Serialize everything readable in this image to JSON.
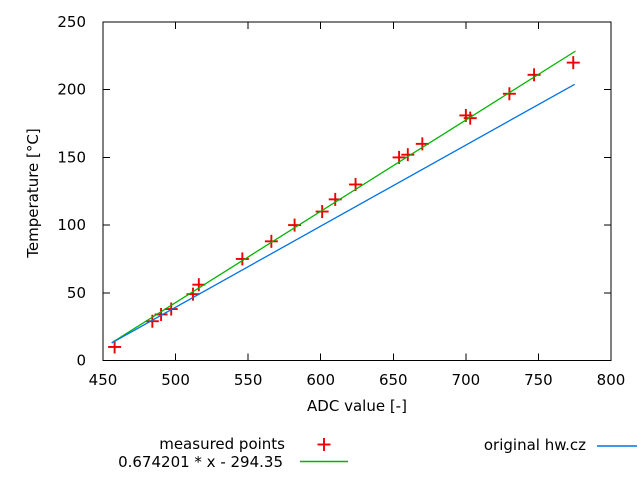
{
  "chart_data": {
    "type": "scatter",
    "title": "",
    "xlabel": "ADC value [-]",
    "ylabel": "Temperature [°C]",
    "xlim": [
      450,
      800
    ],
    "ylim": [
      0,
      250
    ],
    "x_ticks": [
      450,
      500,
      550,
      600,
      650,
      700,
      750,
      800
    ],
    "y_ticks": [
      0,
      50,
      100,
      150,
      200,
      250
    ],
    "grid": false,
    "legend_position": "below-plot",
    "colors": {
      "measured": "#ee0000",
      "fit": "#00b400",
      "original": "#0073e6",
      "frame": "#000000",
      "text": "#000000",
      "background": "#ffffff"
    },
    "series": [
      {
        "name": "measured points",
        "type": "points",
        "marker": "plus",
        "color_key": "measured",
        "points": [
          [
            458,
            10
          ],
          [
            484,
            29
          ],
          [
            490,
            34
          ],
          [
            497,
            38
          ],
          [
            512,
            49
          ],
          [
            516,
            56
          ],
          [
            546,
            75
          ],
          [
            566,
            88
          ],
          [
            582,
            100
          ],
          [
            601,
            110
          ],
          [
            610,
            119
          ],
          [
            624,
            130
          ],
          [
            654,
            150
          ],
          [
            660,
            152
          ],
          [
            670,
            160
          ],
          [
            700,
            181
          ],
          [
            703,
            179
          ],
          [
            730,
            197
          ],
          [
            747,
            211
          ],
          [
            774,
            220
          ]
        ]
      },
      {
        "name": "0.674201 * x - 294.35",
        "type": "line",
        "color_key": "fit",
        "equation": {
          "slope": 0.674201,
          "intercept": -294.35
        },
        "x_range": [
          456,
          775.5
        ]
      },
      {
        "name": "original hw.cz",
        "type": "line",
        "color_key": "original",
        "endpoints": [
          [
            456,
            13
          ],
          [
            775,
            204
          ]
        ]
      }
    ]
  }
}
